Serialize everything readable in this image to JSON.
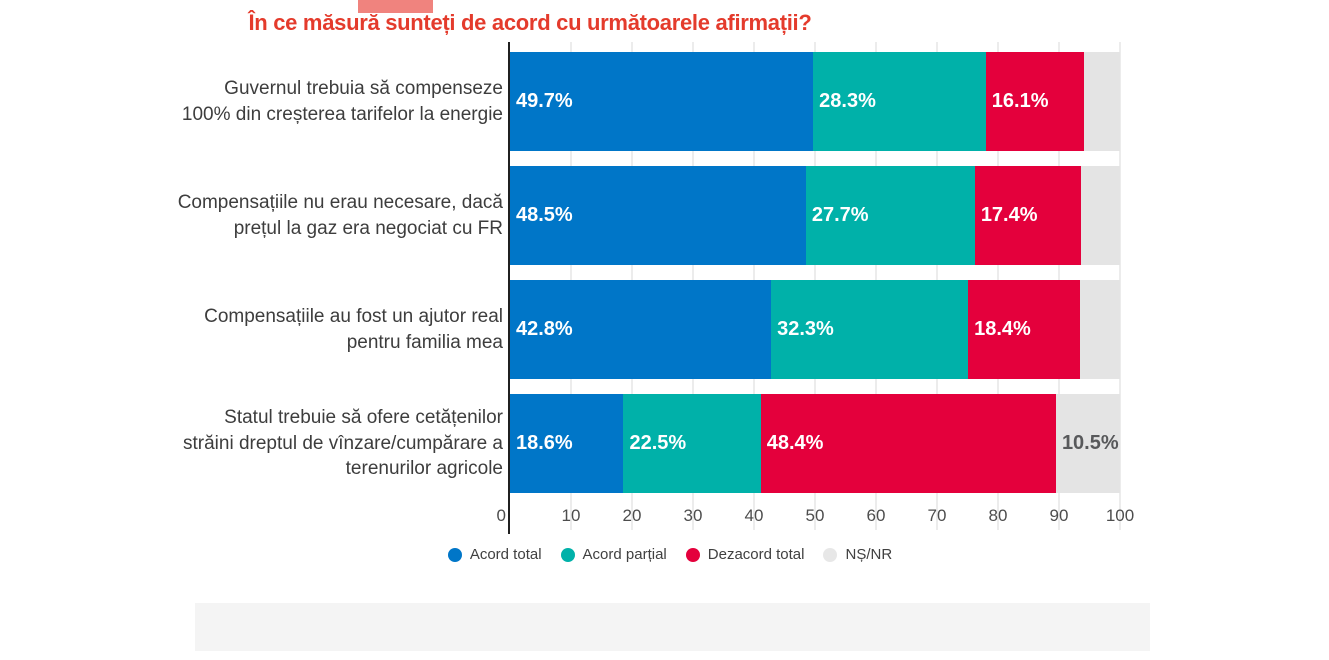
{
  "header": {
    "accent_color": "#F0837E",
    "title_color": "#E43B2C"
  },
  "chart_data": {
    "type": "bar",
    "stacked": true,
    "orientation": "horizontal",
    "title": "În ce măsură sunteți de acord cu următoarele afirmații?",
    "categories": [
      [
        "Guvernul trebuia să compenseze",
        "100% din creșterea tarifelor la energie"
      ],
      [
        "Compensațiile nu erau necesare, dacă",
        "prețul la gaz era negociat cu FR"
      ],
      [
        "Compensațiile au fost un ajutor real",
        "pentru familia mea"
      ],
      [
        "Statul trebuie să ofere cetățenilor",
        "străini dreptul de vînzare/cumpărare a",
        "terenurilor agricole"
      ]
    ],
    "series": [
      {
        "name": "Acord total",
        "color": "#0076C8",
        "legend_dot_color": "#0076C8",
        "label_color": "#FFFFFF",
        "values": [
          49.7,
          48.5,
          42.8,
          18.6
        ],
        "show_labels": [
          true,
          true,
          true,
          true
        ]
      },
      {
        "name": "Acord parțial",
        "color": "#00B1A9",
        "legend_dot_color": "#00B1A9",
        "label_color": "#FFFFFF",
        "values": [
          28.3,
          27.7,
          32.3,
          22.5
        ],
        "show_labels": [
          true,
          true,
          true,
          true
        ]
      },
      {
        "name": "Dezacord total",
        "color": "#E4003C",
        "legend_dot_color": "#E4003C",
        "label_color": "#FFFFFF",
        "values": [
          16.1,
          17.4,
          18.4,
          48.4
        ],
        "show_labels": [
          true,
          true,
          true,
          true
        ]
      },
      {
        "name": "NȘ/NR",
        "color": "#E4E4E4",
        "legend_dot_color": "#E7E7E7",
        "label_color": "#58595B",
        "values": [
          5.9,
          6.4,
          6.5,
          10.5
        ],
        "show_labels": [
          false,
          false,
          false,
          true
        ]
      }
    ],
    "xlim": [
      0,
      100
    ],
    "x_ticks": [
      0,
      10,
      20,
      30,
      40,
      50,
      60,
      70,
      80,
      90,
      100
    ],
    "grid": true,
    "legend_position": "bottom",
    "value_suffix": "%"
  },
  "footer": {
    "band_color": "#F4F4F4"
  }
}
